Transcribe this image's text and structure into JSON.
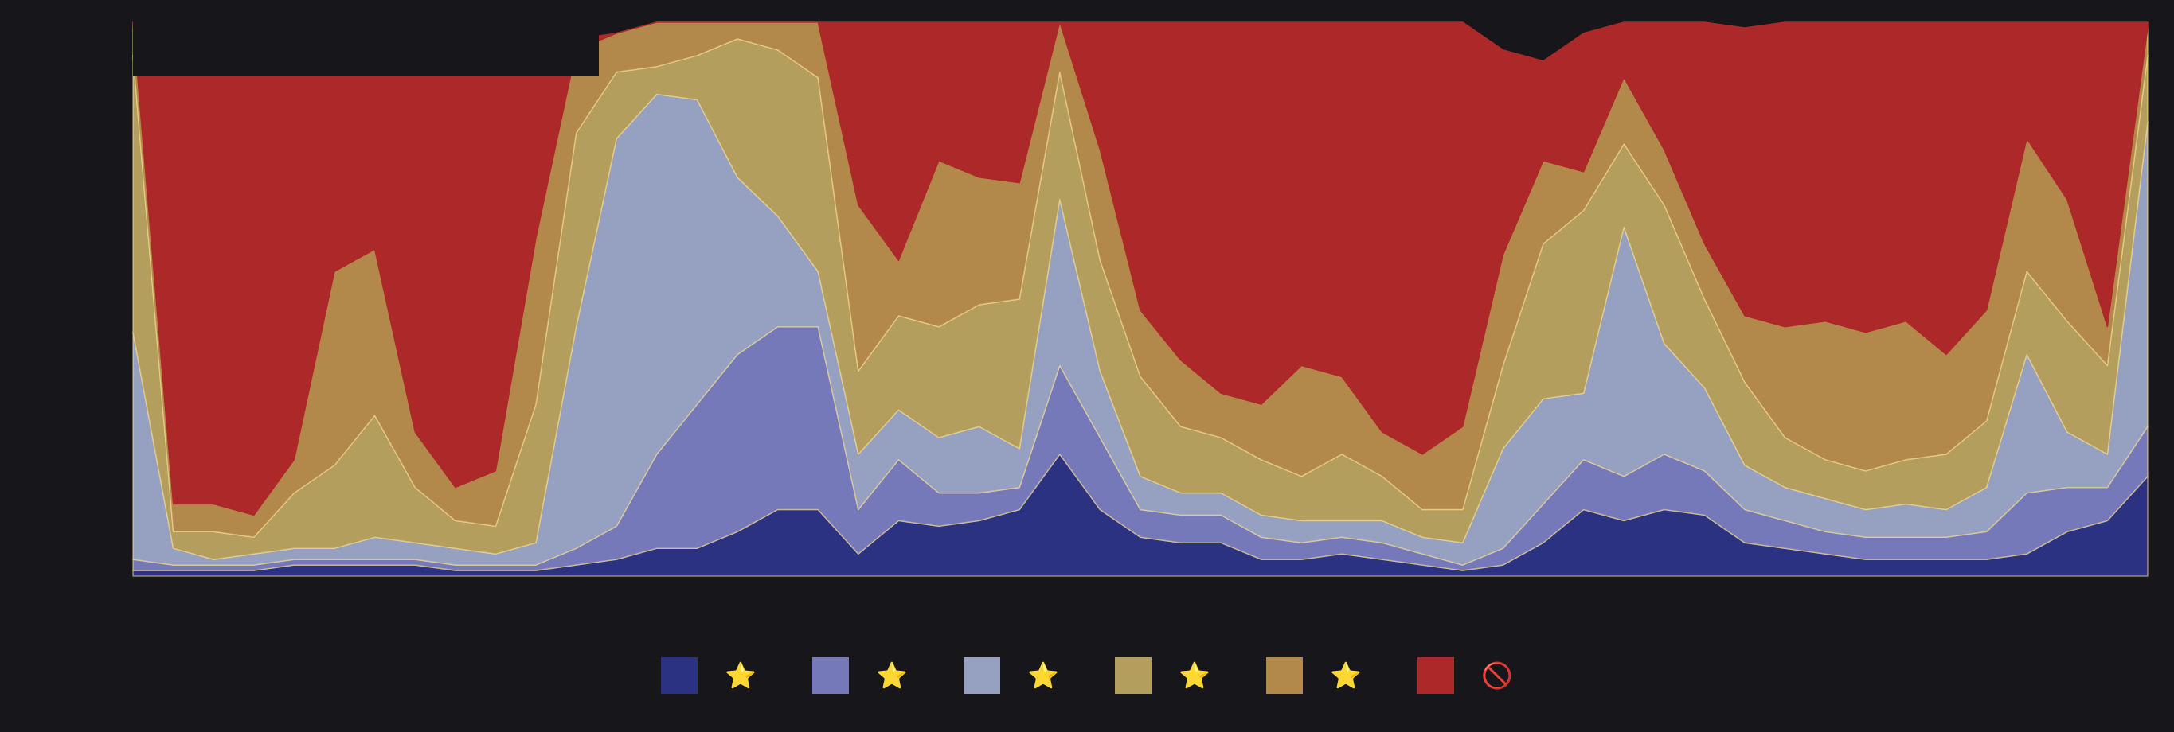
{
  "chart_data": {
    "type": "area",
    "stacked": true,
    "normalized": true,
    "ylim": [
      0,
      1
    ],
    "grid": false,
    "legend_position": "bottom",
    "x": [
      0,
      2,
      4,
      6,
      8,
      10,
      12,
      14,
      16,
      18,
      20,
      22,
      24,
      26,
      28,
      30,
      32,
      34,
      36,
      38,
      40,
      42,
      44,
      46,
      48,
      50,
      52,
      54,
      56,
      58,
      60,
      62,
      64,
      66,
      68,
      70,
      72,
      74,
      76,
      78,
      80,
      82,
      84,
      86,
      88,
      90,
      92,
      94,
      96,
      98,
      100
    ],
    "series": [
      {
        "name": "⭐",
        "color": "#2b3281",
        "values": [
          0.01,
          0.01,
          0.01,
          0.01,
          0.02,
          0.02,
          0.02,
          0.02,
          0.01,
          0.01,
          0.01,
          0.02,
          0.03,
          0.05,
          0.05,
          0.08,
          0.12,
          0.12,
          0.04,
          0.1,
          0.09,
          0.1,
          0.12,
          0.22,
          0.12,
          0.07,
          0.06,
          0.06,
          0.03,
          0.03,
          0.04,
          0.03,
          0.02,
          0.01,
          0.02,
          0.06,
          0.12,
          0.1,
          0.12,
          0.11,
          0.06,
          0.05,
          0.04,
          0.03,
          0.03,
          0.03,
          0.03,
          0.04,
          0.08,
          0.1,
          0.18
        ]
      },
      {
        "name": "⭐",
        "color": "#7579b9",
        "values": [
          0.02,
          0.01,
          0.01,
          0.01,
          0.01,
          0.01,
          0.01,
          0.01,
          0.01,
          0.01,
          0.01,
          0.03,
          0.06,
          0.17,
          0.26,
          0.32,
          0.33,
          0.33,
          0.08,
          0.11,
          0.06,
          0.05,
          0.04,
          0.16,
          0.13,
          0.05,
          0.05,
          0.05,
          0.04,
          0.03,
          0.03,
          0.03,
          0.02,
          0.01,
          0.03,
          0.07,
          0.09,
          0.08,
          0.1,
          0.08,
          0.06,
          0.05,
          0.04,
          0.04,
          0.04,
          0.04,
          0.05,
          0.11,
          0.08,
          0.06,
          0.09
        ]
      },
      {
        "name": "⭐",
        "color": "#96a1c2",
        "values": [
          0.41,
          0.03,
          0.01,
          0.02,
          0.02,
          0.02,
          0.04,
          0.03,
          0.03,
          0.02,
          0.04,
          0.4,
          0.7,
          0.65,
          0.55,
          0.32,
          0.2,
          0.1,
          0.1,
          0.09,
          0.1,
          0.12,
          0.07,
          0.3,
          0.12,
          0.06,
          0.04,
          0.04,
          0.04,
          0.04,
          0.03,
          0.04,
          0.03,
          0.04,
          0.18,
          0.19,
          0.12,
          0.45,
          0.2,
          0.15,
          0.08,
          0.06,
          0.06,
          0.05,
          0.06,
          0.05,
          0.08,
          0.25,
          0.1,
          0.06,
          0.55
        ]
      },
      {
        "name": "⭐",
        "color": "#b49e5e",
        "values": [
          0.5,
          0.03,
          0.05,
          0.03,
          0.1,
          0.15,
          0.22,
          0.1,
          0.05,
          0.05,
          0.25,
          0.35,
          0.12,
          0.05,
          0.08,
          0.25,
          0.3,
          0.35,
          0.15,
          0.17,
          0.2,
          0.22,
          0.27,
          0.23,
          0.2,
          0.18,
          0.12,
          0.1,
          0.1,
          0.08,
          0.12,
          0.08,
          0.05,
          0.06,
          0.15,
          0.28,
          0.33,
          0.15,
          0.25,
          0.16,
          0.15,
          0.09,
          0.07,
          0.07,
          0.08,
          0.1,
          0.12,
          0.15,
          0.2,
          0.16,
          0.12
        ]
      },
      {
        "name": "⭐",
        "color": "#b3894b",
        "values": [
          0.07,
          0.05,
          0.05,
          0.04,
          0.06,
          0.35,
          0.3,
          0.1,
          0.06,
          0.1,
          0.3,
          0.15,
          0.07,
          0.1,
          0.06,
          0.06,
          0.15,
          0.2,
          0.3,
          0.1,
          0.3,
          0.23,
          0.21,
          0.1,
          0.2,
          0.12,
          0.12,
          0.08,
          0.1,
          0.2,
          0.14,
          0.08,
          0.1,
          0.15,
          0.2,
          0.15,
          0.07,
          0.12,
          0.1,
          0.1,
          0.12,
          0.2,
          0.25,
          0.25,
          0.25,
          0.18,
          0.2,
          0.24,
          0.22,
          0.07,
          0.05
        ]
      },
      {
        "name": "🚫",
        "color": "#ad2828",
        "values": [
          0.99,
          0.86,
          0.88,
          0.9,
          0.79,
          0.45,
          0.4,
          0.64,
          0.84,
          0.81,
          0.29,
          0.02,
          0.0,
          0.01,
          0.05,
          0.04,
          0.07,
          0.12,
          0.5,
          0.55,
          0.48,
          0.42,
          0.52,
          0.06,
          0.42,
          0.59,
          0.67,
          0.74,
          0.82,
          0.62,
          0.65,
          0.74,
          0.78,
          0.75,
          0.37,
          0.18,
          0.25,
          0.12,
          0.26,
          0.43,
          0.52,
          0.6,
          0.59,
          0.58,
          0.56,
          0.61,
          0.54,
          0.21,
          0.36,
          0.57,
          0.03
        ]
      }
    ]
  }
}
